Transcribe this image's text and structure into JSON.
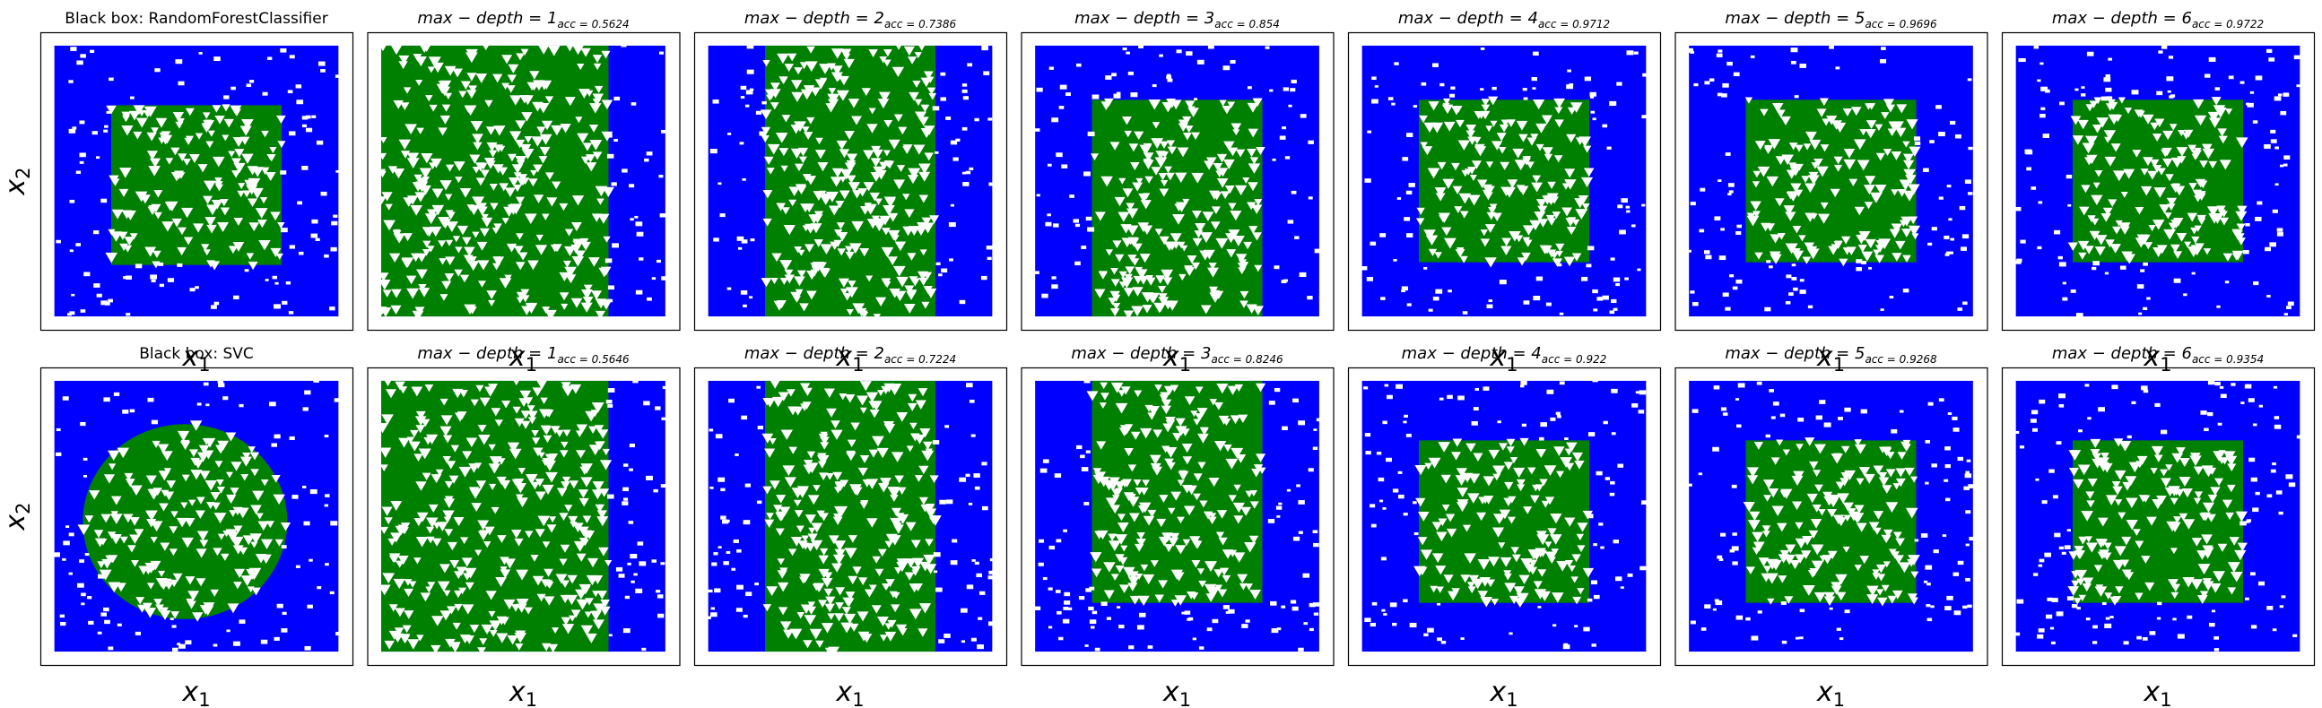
{
  "chart_data": [
    {
      "type": "scatter",
      "title_text": "Black box: RandomForestClassifier",
      "ylabel_main": "x",
      "ylabel_sub": "2",
      "xlabel_main": "x",
      "xlabel_sub": "1",
      "region": {
        "shape": "rect",
        "x": [
          0.2,
          0.8
        ],
        "y": [
          0.19,
          0.78
        ]
      },
      "xlim": [
        0,
        1
      ],
      "ylim": [
        0,
        1
      ]
    },
    {
      "type": "scatter",
      "title_lhs": "max − depth = 1",
      "title_sub": "acc = 0.5624",
      "xlabel_main": "x",
      "xlabel_sub": "1",
      "region": {
        "shape": "rect",
        "x": [
          0.0,
          0.8
        ],
        "y": [
          0.0,
          1.0
        ]
      },
      "xlim": [
        0,
        1
      ],
      "ylim": [
        0,
        1
      ]
    },
    {
      "type": "scatter",
      "title_lhs": "max − depth = 2",
      "title_sub": "acc = 0.7386",
      "xlabel_main": "x",
      "xlabel_sub": "1",
      "region": {
        "shape": "rect",
        "x": [
          0.2,
          0.8
        ],
        "y": [
          0.0,
          1.0
        ]
      },
      "xlim": [
        0,
        1
      ],
      "ylim": [
        0,
        1
      ]
    },
    {
      "type": "scatter",
      "title_lhs": "max − depth = 3",
      "title_sub": "acc = 0.854",
      "xlabel_main": "x",
      "xlabel_sub": "1",
      "region": {
        "shape": "rect",
        "x": [
          0.2,
          0.8
        ],
        "y": [
          0.0,
          0.8
        ]
      },
      "xlim": [
        0,
        1
      ],
      "ylim": [
        0,
        1
      ]
    },
    {
      "type": "scatter",
      "title_lhs": "max − depth = 4",
      "title_sub": "acc = 0.9712",
      "xlabel_main": "x",
      "xlabel_sub": "1",
      "region": {
        "shape": "rect",
        "x": [
          0.2,
          0.8
        ],
        "y": [
          0.2,
          0.8
        ]
      },
      "xlim": [
        0,
        1
      ],
      "ylim": [
        0,
        1
      ]
    },
    {
      "type": "scatter",
      "title_lhs": "max − depth = 5",
      "title_sub": "acc = 0.9696",
      "xlabel_main": "x",
      "xlabel_sub": "1",
      "region": {
        "shape": "rect",
        "x": [
          0.2,
          0.8
        ],
        "y": [
          0.2,
          0.8
        ]
      },
      "xlim": [
        0,
        1
      ],
      "ylim": [
        0,
        1
      ]
    },
    {
      "type": "scatter",
      "title_lhs": "max − depth = 6",
      "title_sub": "acc = 0.9722",
      "xlabel_main": "x",
      "xlabel_sub": "1",
      "region": {
        "shape": "rect",
        "x": [
          0.2,
          0.8
        ],
        "y": [
          0.2,
          0.8
        ]
      },
      "xlim": [
        0,
        1
      ],
      "ylim": [
        0,
        1
      ]
    },
    {
      "type": "scatter",
      "title_text": "Black box: SVC",
      "ylabel_main": "x",
      "ylabel_sub": "2",
      "xlabel_main": "x",
      "xlabel_sub": "1",
      "region": {
        "shape": "circle",
        "cx": 0.46,
        "cy": 0.48,
        "r": 0.36
      },
      "xlim": [
        0,
        1
      ],
      "ylim": [
        0,
        1
      ]
    },
    {
      "type": "scatter",
      "title_lhs": "max − depth = 1",
      "title_sub": "acc = 0.5646",
      "xlabel_main": "x",
      "xlabel_sub": "1",
      "region": {
        "shape": "rect",
        "x": [
          0.0,
          0.8
        ],
        "y": [
          0.0,
          1.0
        ]
      },
      "xlim": [
        0,
        1
      ],
      "ylim": [
        0,
        1
      ]
    },
    {
      "type": "scatter",
      "title_lhs": "max − depth = 2",
      "title_sub": "acc = 0.7224",
      "xlabel_main": "x",
      "xlabel_sub": "1",
      "region": {
        "shape": "rect",
        "x": [
          0.2,
          0.8
        ],
        "y": [
          0.0,
          1.0
        ]
      },
      "xlim": [
        0,
        1
      ],
      "ylim": [
        0,
        1
      ]
    },
    {
      "type": "scatter",
      "title_lhs": "max − depth = 3",
      "title_sub": "acc = 0.8246",
      "xlabel_main": "x",
      "xlabel_sub": "1",
      "region": {
        "shape": "rect",
        "x": [
          0.2,
          0.8
        ],
        "y": [
          0.18,
          1.0
        ]
      },
      "xlim": [
        0,
        1
      ],
      "ylim": [
        0,
        1
      ]
    },
    {
      "type": "scatter",
      "title_lhs": "max − depth = 4",
      "title_sub": "acc = 0.922",
      "xlabel_main": "x",
      "xlabel_sub": "1",
      "region": {
        "shape": "rect",
        "x": [
          0.2,
          0.8
        ],
        "y": [
          0.18,
          0.78
        ]
      },
      "xlim": [
        0,
        1
      ],
      "ylim": [
        0,
        1
      ]
    },
    {
      "type": "scatter",
      "title_lhs": "max − depth = 5",
      "title_sub": "acc = 0.9268",
      "xlabel_main": "x",
      "xlabel_sub": "1",
      "region": {
        "shape": "rect",
        "x": [
          0.2,
          0.8
        ],
        "y": [
          0.18,
          0.78
        ]
      },
      "xlim": [
        0,
        1
      ],
      "ylim": [
        0,
        1
      ]
    },
    {
      "type": "scatter",
      "title_lhs": "max − depth = 6",
      "title_sub": "acc = 0.9354",
      "xlabel_main": "x",
      "xlabel_sub": "1",
      "region": {
        "shape": "rect",
        "x": [
          0.2,
          0.8
        ],
        "y": [
          0.18,
          0.78
        ]
      },
      "xlim": [
        0,
        1
      ],
      "ylim": [
        0,
        1
      ]
    }
  ],
  "colors": {
    "outside": "#0000ff",
    "inside": "#008000",
    "frame": "#000000"
  },
  "markers": {
    "outside": "square",
    "inside": "triangle"
  }
}
